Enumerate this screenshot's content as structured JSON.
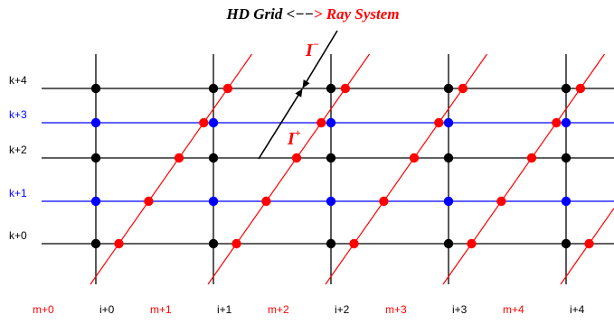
{
  "title": {
    "part1": "HD Grid <−−",
    "part2": "> Ray System"
  },
  "colors": {
    "black": "#000000",
    "blue": "#0000ff",
    "red": "#ff0000"
  },
  "rows": [
    {
      "label": "k+0",
      "color": "#000000"
    },
    {
      "label": "k+1",
      "color": "#0000ff"
    },
    {
      "label": "k+2",
      "color": "#000000"
    },
    {
      "label": "k+3",
      "color": "#0000ff"
    },
    {
      "label": "k+4",
      "color": "#000000"
    }
  ],
  "columns": [
    "i+0",
    "i+1",
    "i+2",
    "i+3",
    "i+4"
  ],
  "rays": [
    "m+0",
    "m+1",
    "m+2",
    "m+3",
    "m+4"
  ],
  "arrows": {
    "incoming": {
      "label": "I",
      "sup": "−"
    },
    "outgoing": {
      "label": "I",
      "sup": "+"
    }
  }
}
